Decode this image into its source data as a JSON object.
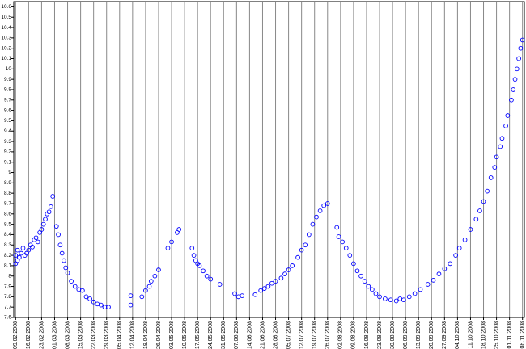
{
  "chart_data": {
    "type": "scatter",
    "color": "#0000ff",
    "grid": true,
    "xlim": [
      "2008-02-08",
      "2008-11-09"
    ],
    "ylim": [
      7.6,
      10.65
    ],
    "yticks": [
      7.6,
      7.7,
      7.8,
      7.9,
      8,
      8.1,
      8.2,
      8.3,
      8.4,
      8.5,
      8.6,
      8.7,
      8.8,
      8.9,
      9,
      9.1,
      9.2,
      9.3,
      9.4,
      9.5,
      9.6,
      9.7,
      9.8,
      9.9,
      10,
      10.1,
      10.2,
      10.3,
      10.4,
      10.5,
      10.6
    ],
    "xticks": [
      {
        "value": "2008-02-09",
        "label": "09.02.2008"
      },
      {
        "value": "2008-02-16",
        "label": "16.02.2008"
      },
      {
        "value": "2008-02-23",
        "label": "23.02.2008"
      },
      {
        "value": "2008-03-01",
        "label": "01.03.2008"
      },
      {
        "value": "2008-03-08",
        "label": "08.03.2008"
      },
      {
        "value": "2008-03-15",
        "label": "15.03.2008"
      },
      {
        "value": "2008-03-22",
        "label": "22.03.2008"
      },
      {
        "value": "2008-03-29",
        "label": "29.03.2008"
      },
      {
        "value": "2008-04-05",
        "label": "05.04.2008"
      },
      {
        "value": "2008-04-12",
        "label": "12.04.2008"
      },
      {
        "value": "2008-04-19",
        "label": "19.04.2008"
      },
      {
        "value": "2008-04-26",
        "label": "26.04.2008"
      },
      {
        "value": "2008-05-03",
        "label": "03.05.2008"
      },
      {
        "value": "2008-05-10",
        "label": "10.05.2008"
      },
      {
        "value": "2008-05-17",
        "label": "17.05.2008"
      },
      {
        "value": "2008-05-24",
        "label": "24.05.2008"
      },
      {
        "value": "2008-05-31",
        "label": "31.05.2008"
      },
      {
        "value": "2008-06-07",
        "label": "07.06.2008"
      },
      {
        "value": "2008-06-14",
        "label": "14.06.2008"
      },
      {
        "value": "2008-06-21",
        "label": "21.06.2008"
      },
      {
        "value": "2008-06-28",
        "label": "28.06.2008"
      },
      {
        "value": "2008-07-05",
        "label": "05.07.2008"
      },
      {
        "value": "2008-07-12",
        "label": "12.07.2008"
      },
      {
        "value": "2008-07-19",
        "label": "19.07.2008"
      },
      {
        "value": "2008-07-26",
        "label": "26.07.2008"
      },
      {
        "value": "2008-08-02",
        "label": "02.08.2008"
      },
      {
        "value": "2008-08-09",
        "label": "09.08.2008"
      },
      {
        "value": "2008-08-16",
        "label": "16.08.2008"
      },
      {
        "value": "2008-08-23",
        "label": "23.08.2008"
      },
      {
        "value": "2008-08-30",
        "label": "30.08.2008"
      },
      {
        "value": "2008-09-06",
        "label": "06.09.2008"
      },
      {
        "value": "2008-09-13",
        "label": "13.09.2008"
      },
      {
        "value": "2008-09-20",
        "label": "20.09.2008"
      },
      {
        "value": "2008-09-27",
        "label": "27.09.2008"
      },
      {
        "value": "2008-10-04",
        "label": "04.10.2008"
      },
      {
        "value": "2008-10-11",
        "label": "11.10.2008"
      },
      {
        "value": "2008-10-18",
        "label": "18.10.2008"
      },
      {
        "value": "2008-10-25",
        "label": "25.10.2008"
      },
      {
        "value": "2008-11-01",
        "label": "01.11.2008"
      },
      {
        "value": "2008-11-08",
        "label": "08.11.2008"
      }
    ],
    "x": [
      "2008-02-09",
      "2008-02-09",
      "2008-02-10",
      "2008-02-10",
      "2008-02-11",
      "2008-02-12",
      "2008-02-13",
      "2008-02-14",
      "2008-02-15",
      "2008-02-16",
      "2008-02-17",
      "2008-02-18",
      "2008-02-19",
      "2008-02-20",
      "2008-02-21",
      "2008-02-22",
      "2008-02-23",
      "2008-02-24",
      "2008-02-25",
      "2008-02-26",
      "2008-02-27",
      "2008-02-28",
      "2008-02-29",
      "2008-03-02",
      "2008-03-03",
      "2008-03-04",
      "2008-03-05",
      "2008-03-06",
      "2008-03-07",
      "2008-03-08",
      "2008-03-10",
      "2008-03-12",
      "2008-03-14",
      "2008-03-16",
      "2008-03-18",
      "2008-03-20",
      "2008-03-22",
      "2008-03-24",
      "2008-03-26",
      "2008-03-28",
      "2008-03-30",
      "2008-04-11",
      "2008-04-11",
      "2008-04-17",
      "2008-04-19",
      "2008-04-21",
      "2008-04-22",
      "2008-04-24",
      "2008-04-26",
      "2008-05-01",
      "2008-05-03",
      "2008-05-06",
      "2008-05-07",
      "2008-05-14",
      "2008-05-15",
      "2008-05-16",
      "2008-05-17",
      "2008-05-18",
      "2008-05-20",
      "2008-05-22",
      "2008-05-24",
      "2008-05-29",
      "2008-06-06",
      "2008-06-08",
      "2008-06-10",
      "2008-06-17",
      "2008-06-20",
      "2008-06-22",
      "2008-06-24",
      "2008-06-26",
      "2008-06-28",
      "2008-07-01",
      "2008-07-03",
      "2008-07-05",
      "2008-07-07",
      "2008-07-10",
      "2008-07-12",
      "2008-07-14",
      "2008-07-16",
      "2008-07-18",
      "2008-07-20",
      "2008-07-22",
      "2008-07-24",
      "2008-07-26",
      "2008-07-31",
      "2008-08-01",
      "2008-08-03",
      "2008-08-05",
      "2008-08-07",
      "2008-08-09",
      "2008-08-11",
      "2008-08-13",
      "2008-08-15",
      "2008-08-17",
      "2008-08-19",
      "2008-08-21",
      "2008-08-23",
      "2008-08-26",
      "2008-08-29",
      "2008-09-01",
      "2008-09-03",
      "2008-09-05",
      "2008-09-08",
      "2008-09-11",
      "2008-09-14",
      "2008-09-18",
      "2008-09-21",
      "2008-09-24",
      "2008-09-27",
      "2008-09-30",
      "2008-10-03",
      "2008-10-05",
      "2008-10-08",
      "2008-10-11",
      "2008-10-14",
      "2008-10-16",
      "2008-10-18",
      "2008-10-20",
      "2008-10-22",
      "2008-10-24",
      "2008-10-25",
      "2008-10-27",
      "2008-10-28",
      "2008-10-30",
      "2008-10-31",
      "2008-11-02",
      "2008-11-03",
      "2008-11-04",
      "2008-11-05",
      "2008-11-06",
      "2008-11-07",
      "2008-11-08"
    ],
    "values": [
      8.12,
      8.2,
      8.15,
      8.25,
      8.18,
      8.22,
      8.27,
      8.2,
      8.22,
      8.25,
      8.3,
      8.28,
      8.35,
      8.37,
      8.33,
      8.42,
      8.45,
      8.5,
      8.55,
      8.6,
      8.62,
      8.67,
      8.77,
      8.48,
      8.4,
      8.3,
      8.22,
      8.15,
      8.08,
      8.03,
      7.95,
      7.9,
      7.87,
      7.86,
      7.8,
      7.78,
      7.75,
      7.73,
      7.72,
      7.7,
      7.7,
      7.72,
      7.81,
      7.8,
      7.86,
      7.9,
      7.95,
      8,
      8.06,
      8.27,
      8.33,
      8.42,
      8.45,
      8.27,
      8.2,
      8.15,
      8.12,
      8.1,
      8.05,
      8,
      7.97,
      7.92,
      7.83,
      7.8,
      7.81,
      7.82,
      7.86,
      7.88,
      7.9,
      7.93,
      7.95,
      7.98,
      8.02,
      8.06,
      8.1,
      8.18,
      8.25,
      8.3,
      8.4,
      8.5,
      8.57,
      8.63,
      8.68,
      8.7,
      8.47,
      8.38,
      8.33,
      8.27,
      8.2,
      8.12,
      8.05,
      8,
      7.95,
      7.9,
      7.87,
      7.83,
      7.8,
      7.78,
      7.77,
      7.76,
      7.78,
      7.77,
      7.8,
      7.83,
      7.87,
      7.92,
      7.96,
      8.02,
      8.07,
      8.12,
      8.2,
      8.27,
      8.35,
      8.45,
      8.55,
      8.63,
      8.72,
      8.82,
      8.95,
      9.05,
      9.15,
      9.25,
      9.33,
      9.45,
      9.55,
      9.7,
      9.8,
      9.9,
      10,
      10.1,
      10.2,
      10.28
    ]
  }
}
